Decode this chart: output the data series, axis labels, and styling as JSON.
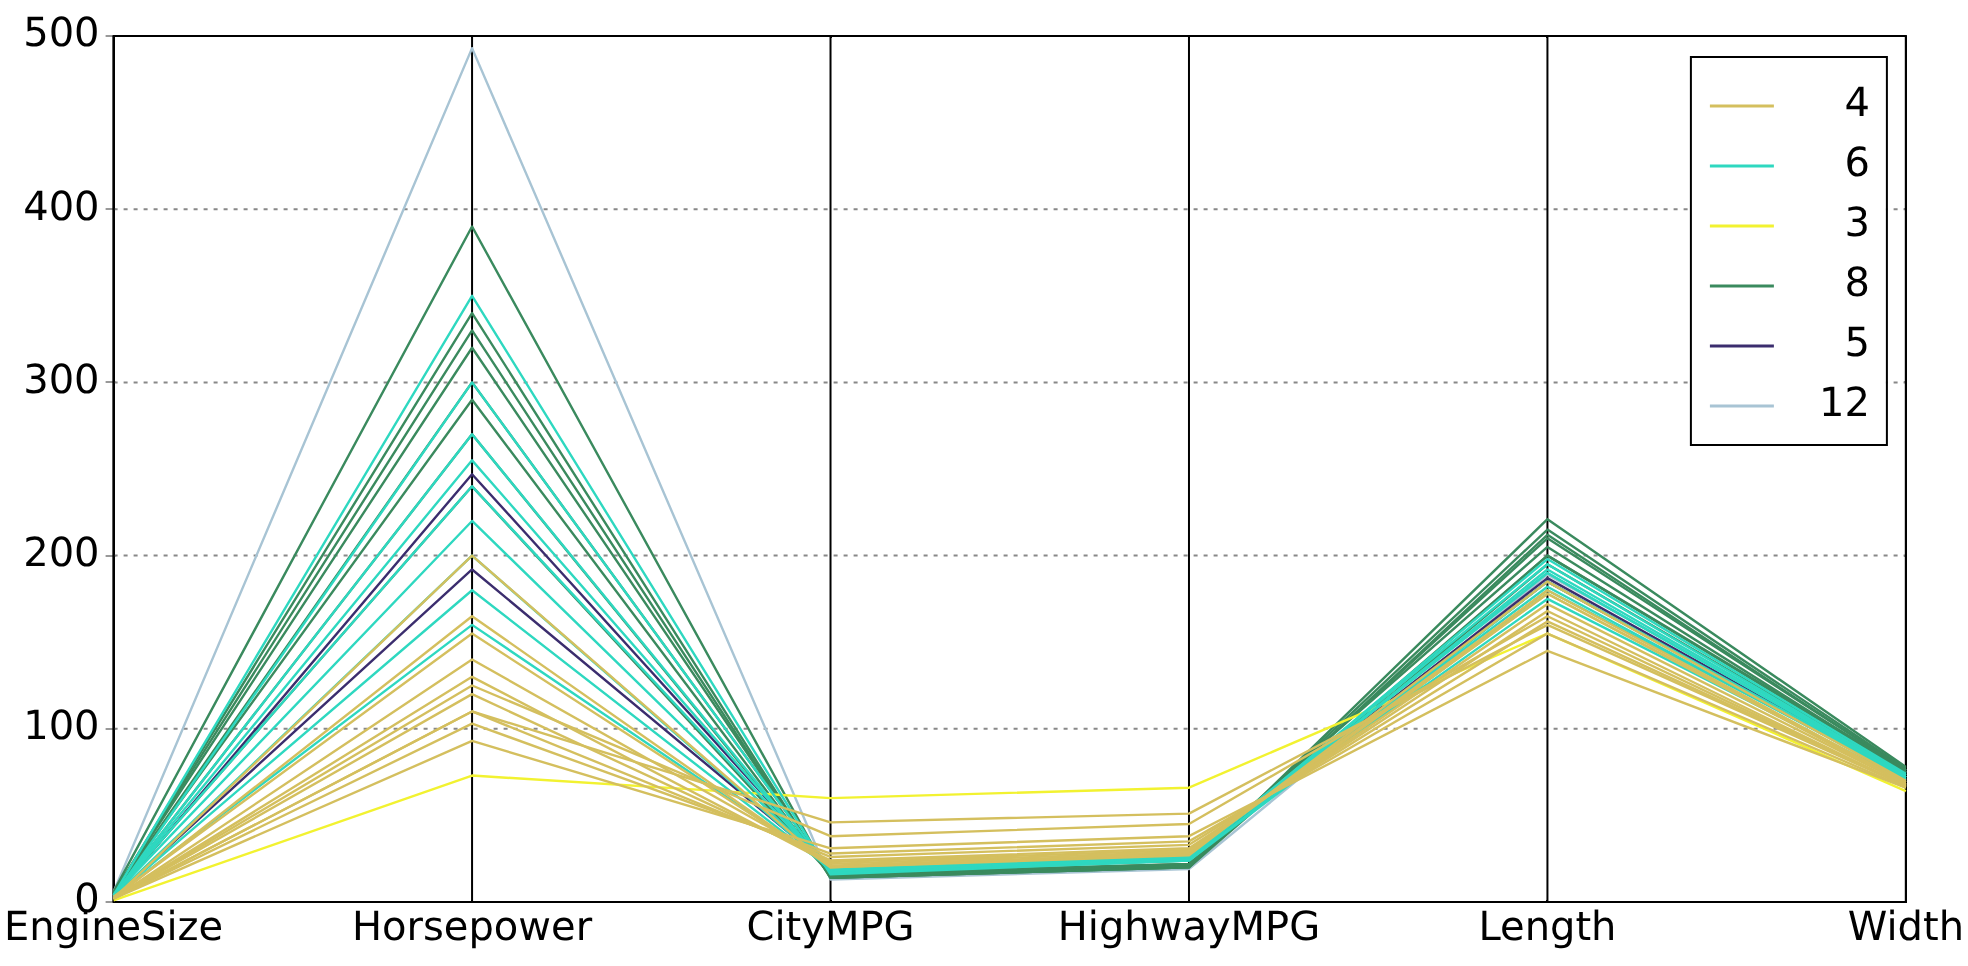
{
  "chart_data": {
    "type": "line",
    "categories": [
      "EngineSize",
      "Horsepower",
      "CityMPG",
      "HighwayMPG",
      "Length",
      "Width"
    ],
    "ylim": [
      0,
      500
    ],
    "yticks": [
      0,
      100,
      200,
      300,
      400,
      500
    ],
    "grid": true,
    "legend": "top right",
    "marker": "none",
    "series": [
      {
        "name": "4",
        "color": "#d4bf5e",
        "values": [
          2,
          130,
          22,
          29,
          178,
          68
        ]
      },
      {
        "color": "#d4bf5e",
        "values": [
          2,
          93,
          31,
          38,
          145,
          66
        ]
      },
      {
        "color": "#d4bf5e",
        "values": [
          2,
          103,
          28,
          35,
          155,
          66
        ]
      },
      {
        "color": "#d4bf5e",
        "values": [
          2,
          110,
          26,
          33,
          162,
          67
        ]
      },
      {
        "color": "#d4bf5e",
        "values": [
          2,
          120,
          24,
          31,
          168,
          67
        ]
      },
      {
        "color": "#d4bf5e",
        "values": [
          2,
          140,
          23,
          30,
          172,
          68
        ]
      },
      {
        "color": "#d4bf5e",
        "values": [
          3,
          155,
          21,
          28,
          180,
          69
        ]
      },
      {
        "color": "#d4bf5e",
        "values": [
          2,
          165,
          20,
          27,
          185,
          70
        ]
      },
      {
        "color": "#d4bf5e",
        "values": [
          2,
          200,
          20,
          28,
          178,
          69
        ]
      },
      {
        "color": "#d4bf5e",
        "values": [
          2,
          110,
          46,
          51,
          160,
          67
        ]
      },
      {
        "color": "#d4bf5e",
        "values": [
          2,
          125,
          38,
          45,
          165,
          67
        ]
      },
      {
        "name": "6",
        "color": "#2ed8c0",
        "values": [
          3,
          200,
          19,
          27,
          190,
          72
        ]
      },
      {
        "color": "#2ed8c0",
        "values": [
          3,
          160,
          20,
          28,
          175,
          70
        ]
      },
      {
        "color": "#2ed8c0",
        "values": [
          3,
          180,
          19,
          27,
          182,
          71
        ]
      },
      {
        "color": "#2ed8c0",
        "values": [
          4,
          220,
          18,
          26,
          190,
          72
        ]
      },
      {
        "color": "#2ed8c0",
        "values": [
          4,
          240,
          18,
          26,
          195,
          73
        ]
      },
      {
        "color": "#2ed8c0",
        "values": [
          4,
          255,
          18,
          25,
          192,
          73
        ]
      },
      {
        "color": "#2ed8c0",
        "values": [
          4,
          270,
          17,
          25,
          198,
          74
        ]
      },
      {
        "color": "#2ed8c0",
        "values": [
          3,
          300,
          17,
          24,
          185,
          72
        ]
      },
      {
        "color": "#2ed8c0",
        "values": [
          4,
          350,
          16,
          24,
          180,
          72
        ]
      },
      {
        "name": "3",
        "color": "#f2f230",
        "values": [
          1,
          73,
          60,
          66,
          155,
          64
        ]
      },
      {
        "name": "8",
        "color": "#3a8a5e",
        "values": [
          5,
          300,
          17,
          24,
          205,
          75
        ]
      },
      {
        "color": "#3a8a5e",
        "values": [
          4,
          240,
          16,
          22,
          195,
          74
        ]
      },
      {
        "color": "#3a8a5e",
        "values": [
          4,
          270,
          16,
          22,
          200,
          75
        ]
      },
      {
        "color": "#3a8a5e",
        "values": [
          5,
          290,
          15,
          21,
          210,
          76
        ]
      },
      {
        "color": "#3a8a5e",
        "values": [
          5,
          320,
          15,
          21,
          215,
          77
        ]
      },
      {
        "color": "#3a8a5e",
        "values": [
          5,
          330,
          14,
          20,
          221,
          78
        ]
      },
      {
        "color": "#3a8a5e",
        "values": [
          5,
          340,
          14,
          20,
          212,
          76
        ]
      },
      {
        "color": "#3a8a5e",
        "values": [
          6,
          390,
          14,
          20,
          200,
          76
        ]
      },
      {
        "name": "5",
        "color": "#3b2d6e",
        "values": [
          3,
          192,
          20,
          27,
          185,
          71
        ]
      },
      {
        "color": "#3b2d6e",
        "values": [
          3,
          247,
          19,
          26,
          187,
          72
        ]
      },
      {
        "name": "12",
        "color": "#a8c4d4",
        "values": [
          6,
          493,
          13,
          19,
          189,
          75
        ]
      }
    ]
  }
}
